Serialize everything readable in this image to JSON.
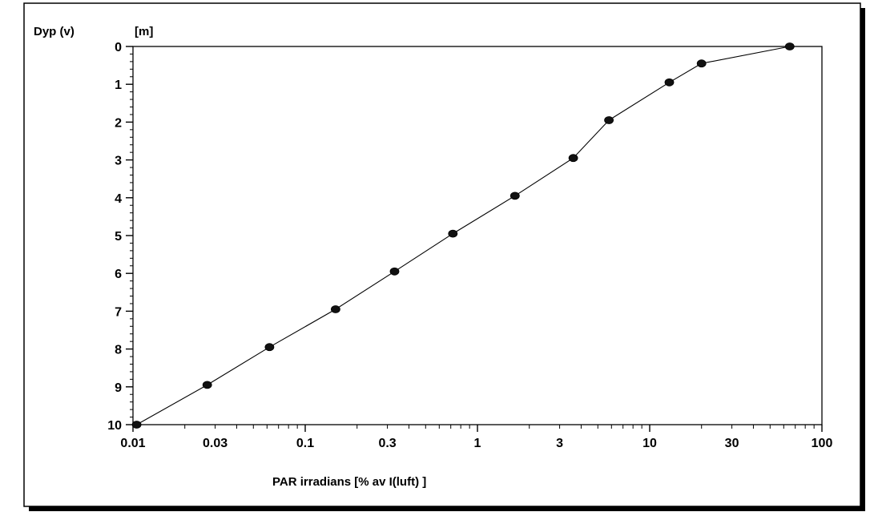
{
  "chart_data": {
    "type": "line",
    "ylabel": "Dyp (v)",
    "yunit": "[m]",
    "xlabel": "PAR irradians [% av I(luft) ]",
    "x_scale": "log",
    "xlim": [
      0.01,
      100
    ],
    "ylim": [
      0,
      10
    ],
    "y_inverted": true,
    "x_ticks": [
      "0.01",
      "0.03",
      "0.1",
      "0.3",
      "1",
      "3",
      "10",
      "30",
      "100"
    ],
    "y_ticks": [
      "0",
      "1",
      "2",
      "3",
      "4",
      "5",
      "6",
      "7",
      "8",
      "9",
      "10"
    ],
    "grid": false,
    "legend": "none",
    "series": [
      {
        "color": "#000000",
        "marker": "filled-circle",
        "x": [
          65,
          20,
          13,
          5.8,
          3.6,
          1.65,
          0.72,
          0.33,
          0.15,
          0.062,
          0.027,
          0.0105
        ],
        "y": [
          0,
          0.45,
          0.95,
          1.95,
          2.95,
          3.95,
          4.95,
          5.95,
          6.95,
          7.95,
          8.95,
          10
        ]
      }
    ]
  }
}
